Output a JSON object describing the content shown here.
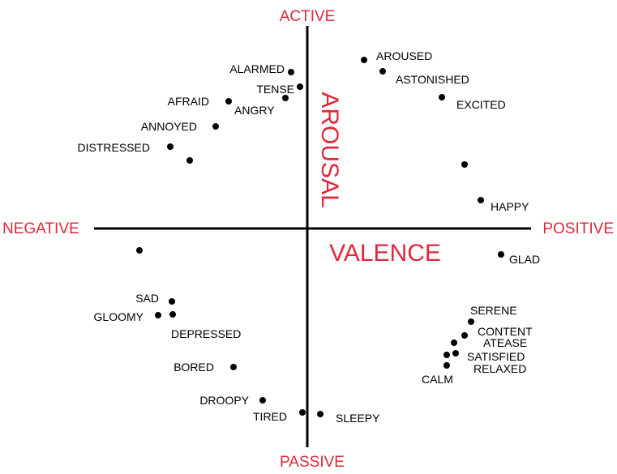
{
  "poles": {
    "top": "ACTIVE",
    "bottom": "PASSIVE",
    "left": "NEGATIVE",
    "right": "POSITIVE"
  },
  "axis_titles": {
    "vertical": "AROUSAL",
    "horizontal": "VALENCE"
  },
  "emotions": [
    "AROUSED",
    "ASTONISHED",
    "EXCITED",
    "HAPPY",
    "GLAD",
    "ALARMED",
    "TENSE",
    "AFRAID",
    "ANGRY",
    "ANNOYED",
    "DISTRESSED",
    "SAD",
    "GLOOMY",
    "DEPRESSED",
    "BORED",
    "DROOPY",
    "TIRED",
    "SLEEPY",
    "SERENE",
    "CONTENT",
    "ATEASE",
    "SATISFIED",
    "RELAXED",
    "CALM"
  ],
  "colors": {
    "accent": "#e0283a",
    "ink": "#000000"
  }
}
